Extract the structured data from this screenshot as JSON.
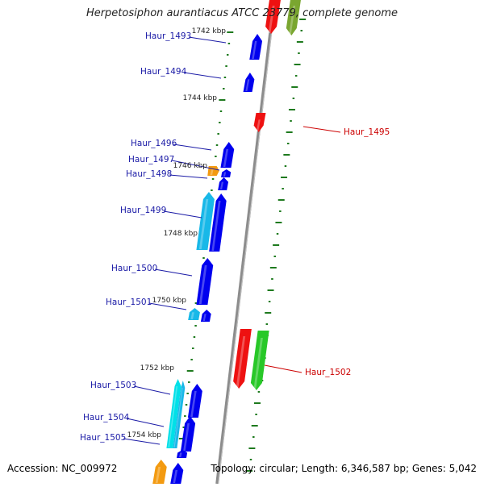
{
  "title": "Herpetosiphon aurantiacus ATCC 23779, complete genome",
  "footer": {
    "accession": "Accession: NC_009972",
    "summary": "Topology: circular; Length: 6,346,587 bp; Genes: 5,042"
  },
  "colors": {
    "background": "#ffffff",
    "backbone": "#8c8c8c",
    "tick": "#1e7a1e",
    "gene_forward": "#0000ee",
    "gene_cyan": "#18b8e8",
    "gene_aqua": "#00e0e8",
    "gene_orange": "#f39a10",
    "gene_red": "#ee1111",
    "gene_green": "#28c828",
    "gene_olive": "#7aa630",
    "label_blue": "#1a1aa6",
    "label_red": "#cc0000"
  },
  "ruler": {
    "kbp_labels": [
      "1742 kbp",
      "1744 kbp",
      "1746 kbp",
      "1748 kbp",
      "1750 kbp",
      "1752 kbp",
      "1754 kbp"
    ]
  },
  "gene_labels": {
    "left": [
      "Haur_1493",
      "Haur_1494",
      "Haur_1496",
      "Haur_1497",
      "Haur_1498",
      "Haur_1499",
      "Haur_1500",
      "Haur_1501",
      "Haur_1503",
      "Haur_1504",
      "Haur_1505"
    ],
    "right": [
      "Haur_1495",
      "Haur_1502"
    ]
  }
}
